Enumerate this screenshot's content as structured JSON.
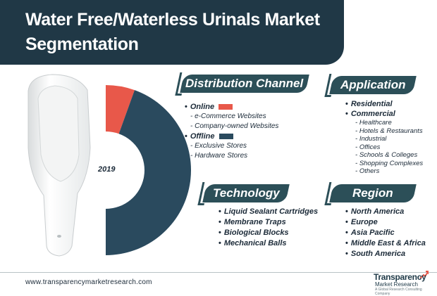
{
  "header": {
    "title_line1": "Water Free/Waterless Urinals Market",
    "title_line2": "Segmentation"
  },
  "chart_data": {
    "type": "pie",
    "style": "donut",
    "annotation": "2019",
    "categories": [
      "Online",
      "Offline"
    ],
    "values": [
      11,
      89
    ],
    "colors": [
      "#e8584a",
      "#2a4a5e"
    ]
  },
  "distribution": {
    "heading": "Distribution Channel",
    "online": {
      "label": "Online",
      "subs": [
        "e-Commerce Websites",
        "Company-owned Websites"
      ]
    },
    "offline": {
      "label": "Offline",
      "subs": [
        "Exclusive Stores",
        "Hardware Stores"
      ]
    }
  },
  "application": {
    "heading": "Application",
    "residential": "Residential",
    "commercial": "Commercial",
    "subs": [
      "Healthcare",
      "Hotels & Restaurants",
      "Industrial",
      "Offices",
      "Schools & Colleges",
      "Shopping Complexes",
      "Others"
    ]
  },
  "technology": {
    "heading": "Technology",
    "items": [
      "Liquid Sealant Cartridges",
      "Membrane Traps",
      "Biological Blocks",
      "Mechanical Balls"
    ]
  },
  "region": {
    "heading": "Region",
    "items": [
      "North America",
      "Europe",
      "Asia Pacific",
      "Middle East & Africa",
      "South America"
    ]
  },
  "footer": {
    "url": "www.transparencymarketresearch.com",
    "logo_name": "Transparency",
    "logo_sub": "Market Research",
    "logo_tag": "A Global Research Consulting Company"
  }
}
